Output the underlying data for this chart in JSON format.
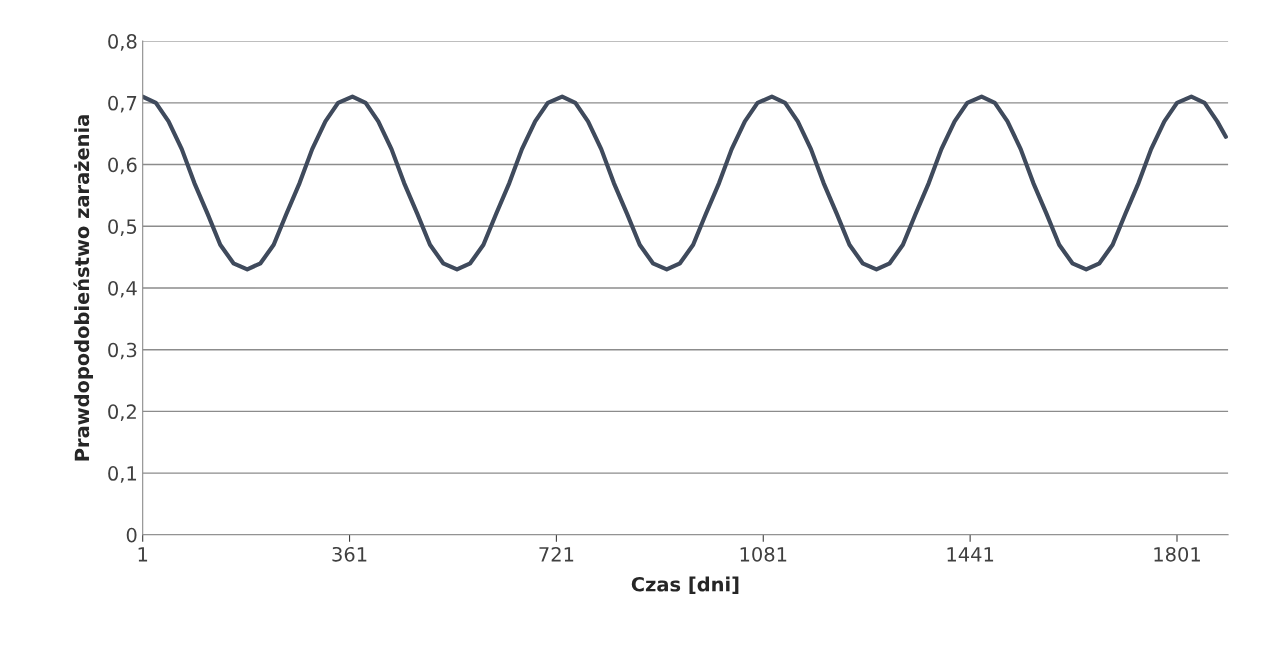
{
  "chart_data": {
    "type": "line",
    "xlabel": "Czas [dni]",
    "ylabel": "Prawdopodobieństwo zarażenia",
    "x": [
      1,
      24,
      46,
      69,
      91,
      114,
      136,
      159,
      183,
      206,
      229,
      251,
      274,
      296,
      319,
      341,
      366,
      389,
      411,
      434,
      456,
      479,
      501,
      524,
      548,
      571,
      594,
      616,
      639,
      661,
      684,
      706,
      731,
      754,
      776,
      799,
      821,
      844,
      866,
      889,
      913,
      936,
      959,
      981,
      1004,
      1026,
      1049,
      1071,
      1096,
      1119,
      1141,
      1164,
      1186,
      1209,
      1231,
      1254,
      1278,
      1301,
      1324,
      1346,
      1369,
      1391,
      1414,
      1436,
      1461,
      1484,
      1506,
      1529,
      1551,
      1574,
      1596,
      1619,
      1643,
      1666,
      1689,
      1711,
      1734,
      1756,
      1779,
      1801,
      1826,
      1849,
      1871,
      1886
    ],
    "series": [
      {
        "color": "#3f4a5c",
        "values": [
          0.71,
          0.7,
          0.67,
          0.625,
          0.57,
          0.52,
          0.47,
          0.44,
          0.43,
          0.44,
          0.47,
          0.52,
          0.57,
          0.625,
          0.67,
          0.7,
          0.71,
          0.7,
          0.67,
          0.625,
          0.57,
          0.52,
          0.47,
          0.44,
          0.43,
          0.44,
          0.47,
          0.52,
          0.57,
          0.625,
          0.67,
          0.7,
          0.71,
          0.7,
          0.67,
          0.625,
          0.57,
          0.52,
          0.47,
          0.44,
          0.43,
          0.44,
          0.47,
          0.52,
          0.57,
          0.625,
          0.67,
          0.7,
          0.71,
          0.7,
          0.67,
          0.625,
          0.57,
          0.52,
          0.47,
          0.44,
          0.43,
          0.44,
          0.47,
          0.52,
          0.57,
          0.625,
          0.67,
          0.7,
          0.71,
          0.7,
          0.67,
          0.625,
          0.57,
          0.52,
          0.47,
          0.44,
          0.43,
          0.44,
          0.47,
          0.52,
          0.57,
          0.625,
          0.67,
          0.7,
          0.71,
          0.7,
          0.67,
          0.645
        ]
      }
    ],
    "xlim": [
      1,
      1890
    ],
    "xticks": [
      1,
      361,
      721,
      1081,
      1441,
      1801
    ],
    "ylim": [
      0,
      0.8
    ],
    "yticks": [
      0,
      {
        "value": 0.1,
        "label": "0,1"
      },
      {
        "value": 0.2,
        "label": "0,2"
      },
      {
        "value": 0.3,
        "label": "0,3"
      },
      {
        "value": 0.4,
        "label": "0,4"
      },
      {
        "value": 0.5,
        "label": "0,5"
      },
      {
        "value": 0.6,
        "label": "0,6"
      },
      {
        "value": 0.7,
        "label": "0,7"
      },
      {
        "value": 0.8,
        "label": "0,8"
      }
    ],
    "grid": "y",
    "marker": "none",
    "line_style": "solid"
  }
}
